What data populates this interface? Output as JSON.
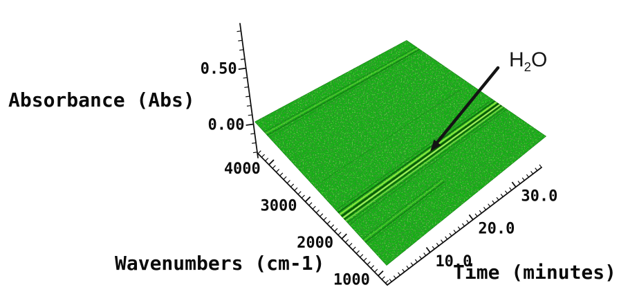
{
  "page": {
    "background": "#ffffff",
    "description": "3D FTIR absorbance surface plot over wavenumber and time with H2O band annotation"
  },
  "chart_data": {
    "type": "surface3d",
    "title": "",
    "background": "#ffffff",
    "axes": {
      "z": {
        "label": "Absorbance (Abs)",
        "tick_labels": [
          "0.00",
          "0.50"
        ],
        "tick_values": [
          0,
          0.5
        ],
        "minor_step": 0.0833,
        "range": [
          -0.3,
          0.9
        ]
      },
      "x": {
        "label": "Wavenumbers (cm-1)",
        "tick_labels": [
          "4000",
          "3000",
          "2000",
          "1000"
        ],
        "tick_values": [
          4000,
          3000,
          2000,
          1000
        ],
        "minor_step": 100,
        "range": [
          4300,
          750
        ]
      },
      "y": {
        "label": "Time (minutes)",
        "tick_labels": [
          "10.0",
          "20.0",
          "30.0"
        ],
        "tick_values": [
          10,
          20,
          30
        ],
        "minor_step": 1,
        "range": [
          0,
          36
        ]
      }
    },
    "surface": {
      "wavenumber_range": [
        4000,
        450
      ],
      "time_range": [
        0,
        36
      ],
      "base_color": "#12b112",
      "speckle_dark_color": "#0a5408",
      "speckle_deep_color": "#05420a",
      "speckle_bright_color": "#59e626",
      "baseline_absorbance": 0.0,
      "bands": [
        {
          "id": "h2o-oh-stretch-band",
          "wavenumber": 3700,
          "strength": "faint",
          "time_span": [
            0,
            36
          ]
        },
        {
          "id": "baseline-ripple",
          "wavenumber": 2400,
          "strength": "hairline",
          "time_span": [
            2,
            34
          ]
        },
        {
          "id": "h2o-bend-band",
          "wavenumber": 1640,
          "strength": "strong",
          "time_span": [
            0,
            36
          ]
        },
        {
          "id": "low-frequency-streaks",
          "wavenumber": 1060,
          "strength": "faint",
          "time_span": [
            0,
            18
          ]
        }
      ]
    },
    "annotation": {
      "text": "H2O",
      "formula": {
        "base": "H",
        "subscript": "2",
        "suffix": "O"
      },
      "arrow_points_to": "h2o-bend-band"
    }
  }
}
